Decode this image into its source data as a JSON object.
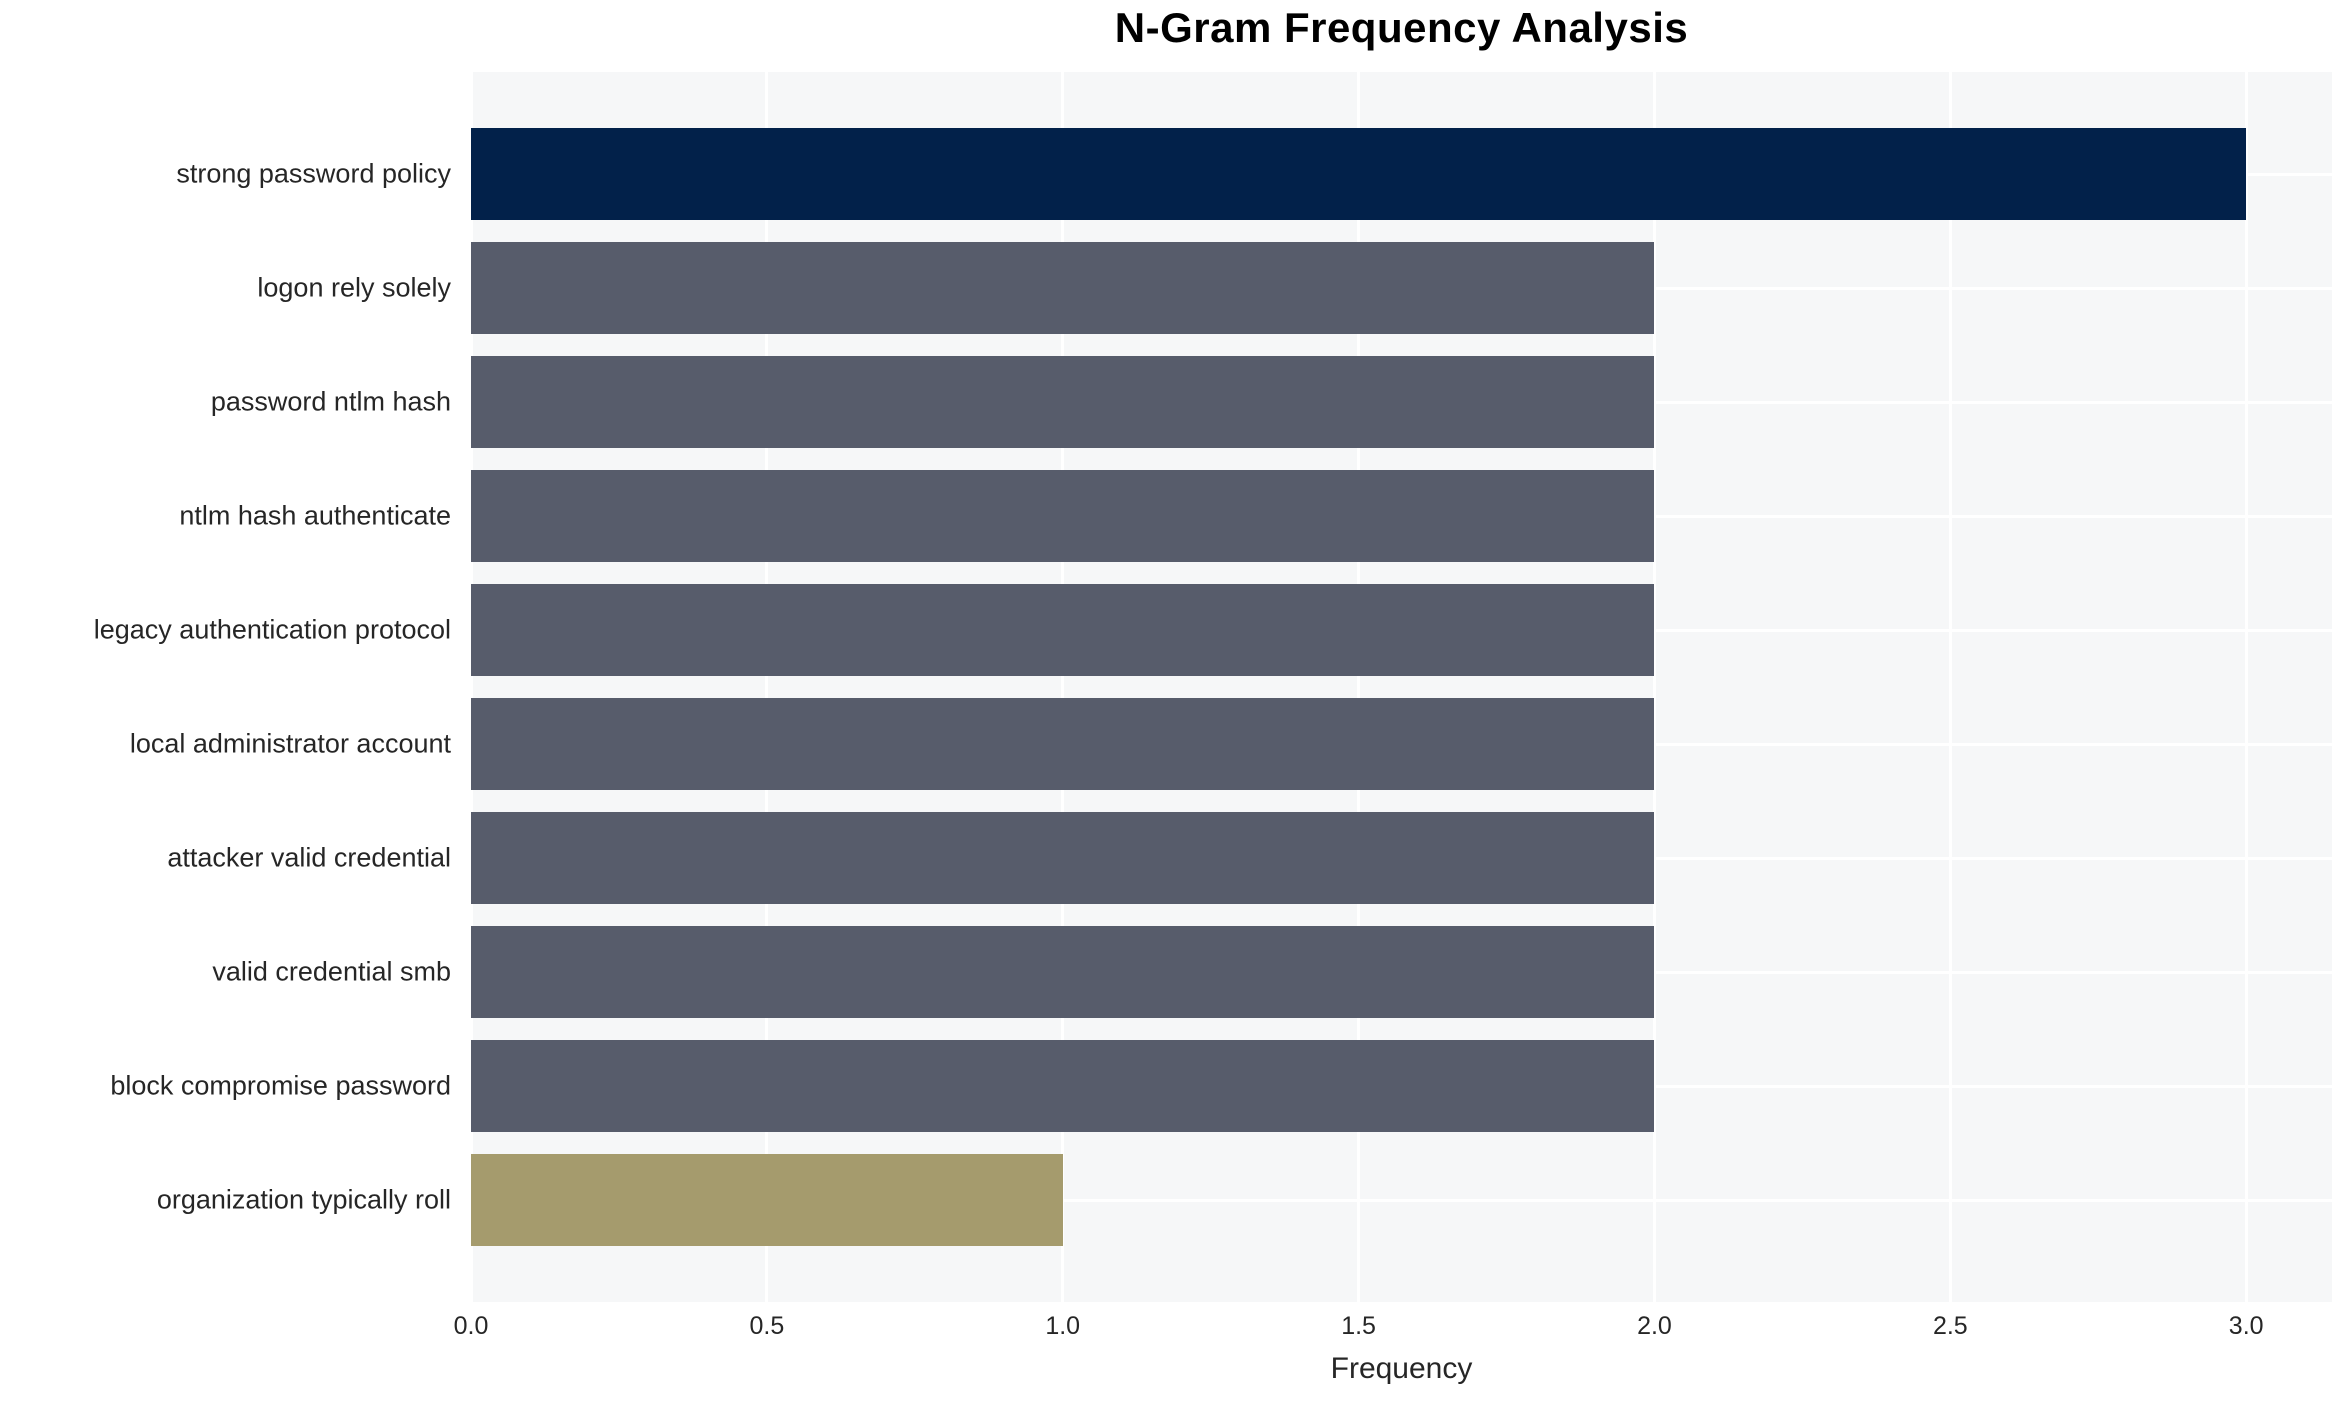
{
  "chart_data": {
    "type": "bar",
    "orientation": "horizontal",
    "title": "N-Gram Frequency Analysis",
    "xlabel": "Frequency",
    "ylabel": "",
    "categories": [
      "strong password policy",
      "logon rely solely",
      "password ntlm hash",
      "ntlm hash authenticate",
      "legacy authentication protocol",
      "local administrator account",
      "attacker valid credential",
      "valid credential smb",
      "block compromise password",
      "organization typically roll"
    ],
    "values": [
      3,
      2,
      2,
      2,
      2,
      2,
      2,
      2,
      2,
      1
    ],
    "bar_colors": [
      "#02214a",
      "#575c6b",
      "#575c6b",
      "#575c6b",
      "#575c6b",
      "#575c6b",
      "#575c6b",
      "#575c6b",
      "#575c6b",
      "#a59b6d"
    ],
    "xlim": [
      0,
      3.145
    ],
    "xticks": [
      0.0,
      0.5,
      1.0,
      1.5,
      2.0,
      2.5,
      3.0
    ],
    "xtick_labels": [
      "0.0",
      "0.5",
      "1.0",
      "1.5",
      "2.0",
      "2.5",
      "3.0"
    ],
    "grid": true,
    "legend": "none",
    "colors": {
      "plot_background": "#f6f7f8",
      "grid_line": "#ffffff",
      "tick_text": "#262626",
      "title_text": "#000000",
      "page_background": "#ffffff"
    }
  }
}
